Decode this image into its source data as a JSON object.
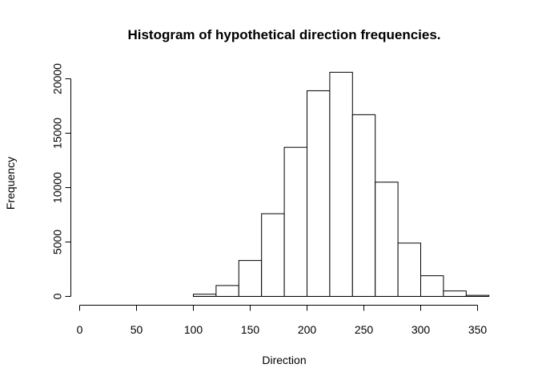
{
  "chart_data": {
    "type": "bar",
    "title": "Histogram of hypothetical direction frequencies.",
    "xlabel": "Direction",
    "ylabel": "Frequency",
    "bins": [
      {
        "start": 0,
        "end": 20,
        "count": 0
      },
      {
        "start": 20,
        "end": 40,
        "count": 0
      },
      {
        "start": 40,
        "end": 60,
        "count": 0
      },
      {
        "start": 60,
        "end": 80,
        "count": 0
      },
      {
        "start": 80,
        "end": 100,
        "count": 0
      },
      {
        "start": 100,
        "end": 120,
        "count": 200
      },
      {
        "start": 120,
        "end": 140,
        "count": 1000
      },
      {
        "start": 140,
        "end": 160,
        "count": 3300
      },
      {
        "start": 160,
        "end": 180,
        "count": 7600
      },
      {
        "start": 180,
        "end": 200,
        "count": 13700
      },
      {
        "start": 200,
        "end": 220,
        "count": 18900
      },
      {
        "start": 220,
        "end": 240,
        "count": 20600
      },
      {
        "start": 240,
        "end": 260,
        "count": 16700
      },
      {
        "start": 260,
        "end": 280,
        "count": 10500
      },
      {
        "start": 280,
        "end": 300,
        "count": 4900
      },
      {
        "start": 300,
        "end": 320,
        "count": 1900
      },
      {
        "start": 320,
        "end": 340,
        "count": 500
      },
      {
        "start": 340,
        "end": 360,
        "count": 100
      }
    ],
    "x_ticks": [
      "0",
      "50",
      "100",
      "150",
      "200",
      "250",
      "300",
      "350"
    ],
    "y_ticks": [
      "0",
      "5000",
      "10000",
      "15000",
      "20000"
    ],
    "xlim": [
      0,
      360
    ],
    "ylim": [
      0,
      20000
    ],
    "grid": false
  }
}
